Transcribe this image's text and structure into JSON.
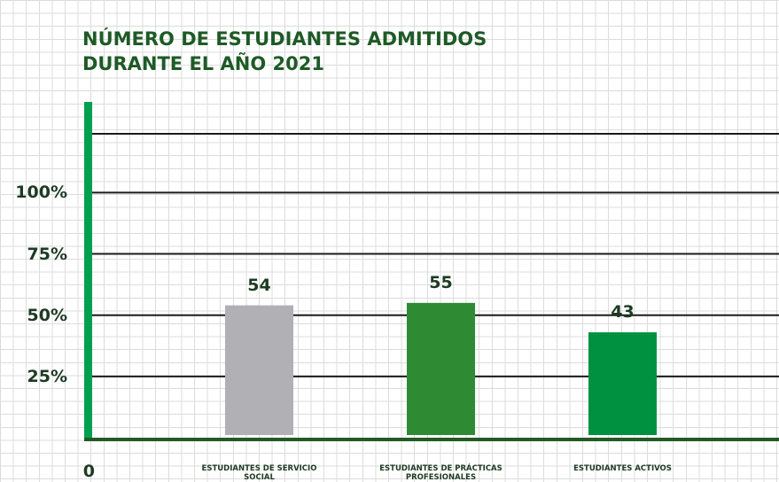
{
  "chart_data": {
    "type": "bar",
    "title": "NÚMERO DE ESTUDIANTES ADMITIDOS DURANTE EL AÑO 2021",
    "categories": [
      "ESTUDIANTES DE SERVICIO SOCIAL",
      "ESTUDIANTES DE PRÁCTICAS PROFESIONALES",
      "ESTUDIANTES ACTIVOS"
    ],
    "values": [
      54,
      55,
      43
    ],
    "colors": [
      "#b1b0b5",
      "#2e8b34",
      "#009140"
    ],
    "ylim": [
      0,
      124
    ],
    "yticks": [
      {
        "value": 0,
        "label": "0"
      },
      {
        "value": 25,
        "label": "25%"
      },
      {
        "value": 50,
        "label": "50%"
      },
      {
        "value": 75,
        "label": "75%"
      },
      {
        "value": 100,
        "label": "100%"
      }
    ],
    "grid": true
  }
}
